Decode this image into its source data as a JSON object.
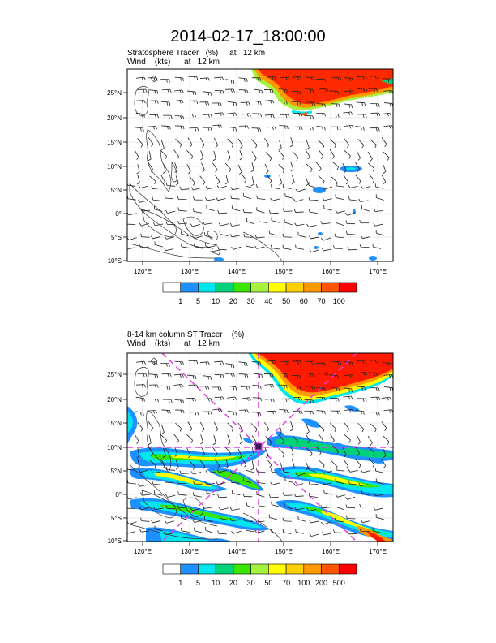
{
  "title": "2014-02-17_18:00:00",
  "panel1": {
    "label_line1": "Stratosphere Tracer   (%)     at   12 km",
    "label_line2": "Wind    (kts)      at   12 km",
    "lat_labels": [
      "25°N",
      "20°N",
      "15°N",
      "10°N",
      "5°N",
      "0°",
      "5°S",
      "10°S"
    ],
    "lon_labels": [
      "120°E",
      "130°E",
      "140°E",
      "150°E",
      "160°E",
      "170°E"
    ],
    "colorbar_labels": [
      "1",
      "5",
      "10",
      "20",
      "30",
      "40",
      "50",
      "60",
      "70",
      "100"
    ],
    "colorbar_colors": [
      "#ffffff",
      "#1e90ff",
      "#00e5ee",
      "#00d27a",
      "#39e600",
      "#a6f23c",
      "#ffff00",
      "#ffd000",
      "#ff9900",
      "#ff5500",
      "#ff0000"
    ]
  },
  "panel2": {
    "label_line1": "8-14 km column ST Tracer    (%)",
    "label_line2": "Wind    (kts)      at   12 km",
    "lat_labels": [
      "25°N",
      "20°N",
      "15°N",
      "10°N",
      "5°N",
      "0°",
      "5°S",
      "10°S"
    ],
    "lon_labels": [
      "120°E",
      "130°E",
      "140°E",
      "150°E",
      "160°E",
      "170°E"
    ],
    "colorbar_labels": [
      "1",
      "5",
      "10",
      "20",
      "30",
      "50",
      "70",
      "100",
      "200",
      "500"
    ],
    "colorbar_colors": [
      "#ffffff",
      "#1e90ff",
      "#00e5ee",
      "#00d27a",
      "#39e600",
      "#a6f23c",
      "#ffff00",
      "#ffd000",
      "#ff9900",
      "#ff5500",
      "#ff0000"
    ]
  }
}
